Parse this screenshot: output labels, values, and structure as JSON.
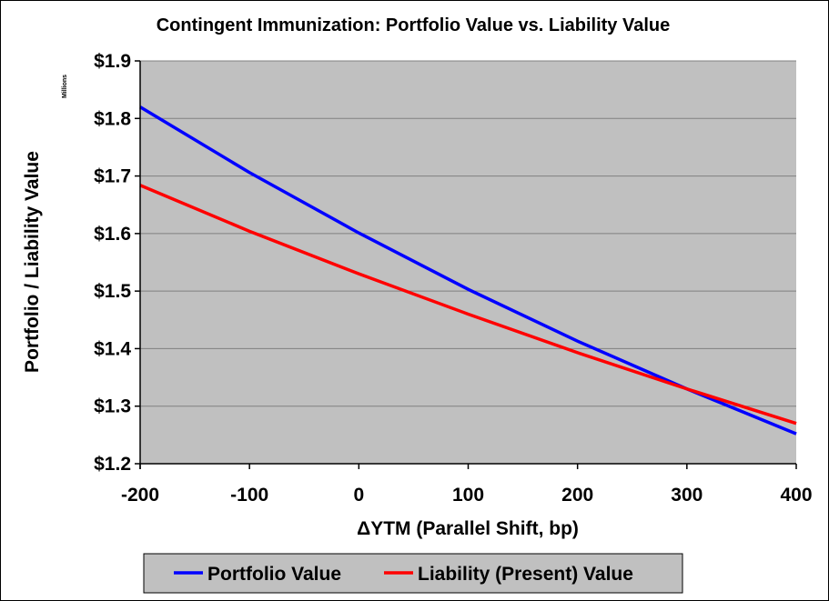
{
  "chart_data": {
    "type": "line",
    "title": "Contingent Immunization: Portfolio Value vs. Liability Value",
    "xlabel": "ΔYTM (Parallel Shift, bp)",
    "ylabel": "Portfolio / Liability Value",
    "y_units": "Millions",
    "xlim": [
      -200,
      400
    ],
    "ylim": [
      1.2,
      1.9
    ],
    "x_ticks": [
      -200,
      -100,
      0,
      100,
      200,
      300,
      400
    ],
    "x_tick_labels": [
      "-200",
      "-100",
      "0",
      "100",
      "200",
      "300",
      "400"
    ],
    "y_ticks": [
      1.2,
      1.3,
      1.4,
      1.5,
      1.6,
      1.7,
      1.8,
      1.9
    ],
    "y_tick_labels": [
      "$1.2",
      "$1.3",
      "$1.4",
      "$1.5",
      "$1.6",
      "$1.7",
      "$1.8",
      "$1.9"
    ],
    "grid": "horizontal",
    "legend_position": "bottom",
    "plot_background": "#c0c0c0",
    "x": [
      -200,
      -100,
      0,
      100,
      200,
      300,
      400
    ],
    "series": [
      {
        "name": "Portfolio Value",
        "color": "#0000ff",
        "values": [
          1.82,
          1.706,
          1.601,
          1.503,
          1.413,
          1.33,
          1.252
        ]
      },
      {
        "name": "Liability (Present) Value",
        "color": "#ff0000",
        "values": [
          1.684,
          1.604,
          1.53,
          1.46,
          1.393,
          1.33,
          1.27
        ]
      }
    ]
  }
}
